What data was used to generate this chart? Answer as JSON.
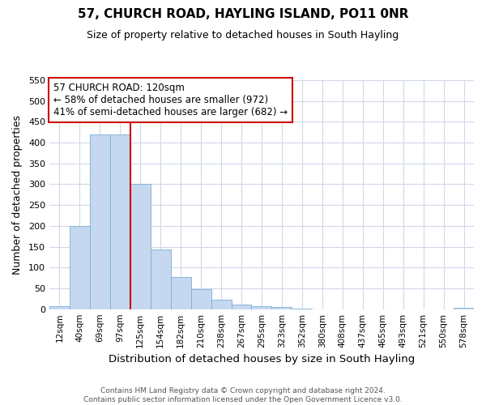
{
  "title": "57, CHURCH ROAD, HAYLING ISLAND, PO11 0NR",
  "subtitle": "Size of property relative to detached houses in South Hayling",
  "xlabel": "Distribution of detached houses by size in South Hayling",
  "ylabel": "Number of detached properties",
  "footer_line1": "Contains HM Land Registry data © Crown copyright and database right 2024.",
  "footer_line2": "Contains public sector information licensed under the Open Government Licence v3.0.",
  "categories": [
    "12sqm",
    "40sqm",
    "69sqm",
    "97sqm",
    "125sqm",
    "154sqm",
    "182sqm",
    "210sqm",
    "238sqm",
    "267sqm",
    "295sqm",
    "323sqm",
    "352sqm",
    "380sqm",
    "408sqm",
    "437sqm",
    "465sqm",
    "493sqm",
    "521sqm",
    "550sqm",
    "578sqm"
  ],
  "values": [
    8,
    200,
    420,
    420,
    300,
    143,
    77,
    48,
    23,
    12,
    8,
    5,
    2,
    0,
    0,
    0,
    0,
    0,
    0,
    0,
    3
  ],
  "bar_color": "#c5d8f0",
  "bar_edge_color": "#7aaed6",
  "ylim": [
    0,
    550
  ],
  "yticks": [
    0,
    50,
    100,
    150,
    200,
    250,
    300,
    350,
    400,
    450,
    500,
    550
  ],
  "marker_bin_index": 4,
  "marker_color": "#cc0000",
  "annotation_title": "57 CHURCH ROAD: 120sqm",
  "annotation_line1": "← 58% of detached houses are smaller (972)",
  "annotation_line2": "41% of semi-detached houses are larger (682) →",
  "annotation_box_color": "#ffffff",
  "annotation_box_edge": "#cc0000",
  "background_color": "#ffffff",
  "grid_color": "#d0d8e8"
}
